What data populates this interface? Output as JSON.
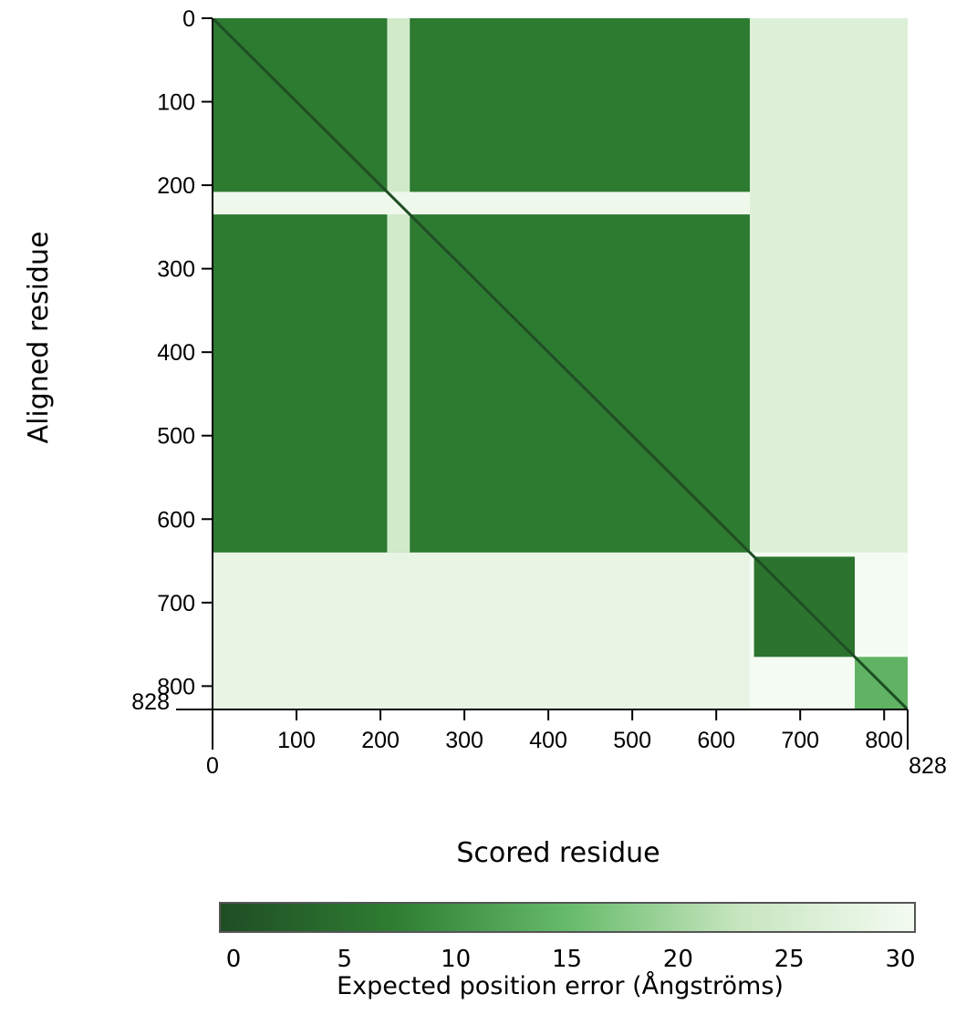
{
  "chart_data": {
    "type": "heatmap",
    "xlabel": "Scored residue",
    "ylabel": "Aligned residue",
    "x_range": [
      0,
      828
    ],
    "y_range": [
      0,
      828
    ],
    "y_inverted": true,
    "x_ticks": [
      0,
      100,
      200,
      300,
      400,
      500,
      600,
      700,
      800,
      828
    ],
    "y_ticks": [
      0,
      100,
      200,
      300,
      400,
      500,
      600,
      700,
      800,
      828
    ],
    "colorbar": {
      "label": "Expected position error (Ångströms)",
      "range": [
        0,
        30
      ],
      "ticks": [
        0,
        5,
        10,
        15,
        20,
        25,
        30
      ],
      "colors": [
        "#1f4d24",
        "#2e7d32",
        "#66bb6a",
        "#c8e6c0",
        "#f4fbf2"
      ]
    },
    "domains": [
      {
        "start": 0,
        "end": 208,
        "error": 6
      },
      {
        "start": 235,
        "end": 640,
        "error": 7
      },
      {
        "start": 645,
        "end": 765,
        "error": 6
      },
      {
        "start": 765,
        "end": 828,
        "error": 15
      }
    ],
    "regions": [
      {
        "x": [
          0,
          640
        ],
        "y": [
          0,
          640
        ],
        "error": 7
      },
      {
        "x": [
          208,
          235
        ],
        "y": [
          0,
          640
        ],
        "error": 24
      },
      {
        "x": [
          0,
          828
        ],
        "y": [
          208,
          235
        ],
        "error": 29
      },
      {
        "x": [
          640,
          828
        ],
        "y": [
          0,
          640
        ],
        "error": 26
      },
      {
        "x": [
          0,
          640
        ],
        "y": [
          640,
          828
        ],
        "error": 28
      },
      {
        "x": [
          645,
          765
        ],
        "y": [
          645,
          765
        ],
        "error": 6
      },
      {
        "x": [
          765,
          828
        ],
        "y": [
          765,
          828
        ],
        "error": 14
      }
    ]
  }
}
